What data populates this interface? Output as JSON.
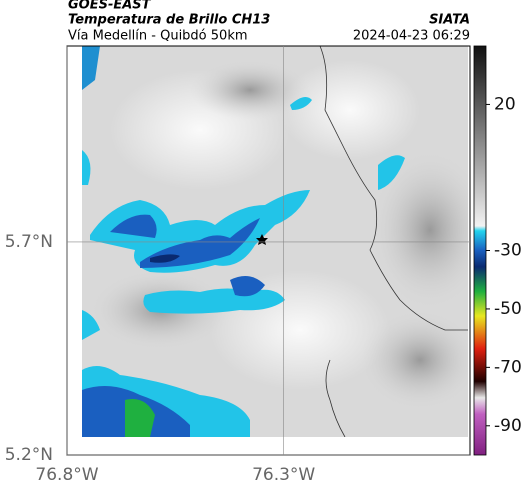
{
  "map": {
    "title": "GOES-EAST",
    "subtitle": "Temperatura de Brillo CH13",
    "region": "Vía Medellín - Quibdó 50km",
    "source": "SIATA",
    "timestamp": "2024-04-23 06:29",
    "xlim": [
      -76.8,
      -75.87
    ],
    "ylim": [
      5.2,
      6.16
    ],
    "xticks": [
      {
        "value": -76.8,
        "label": "76.8°W"
      },
      {
        "value": -76.3,
        "label": "76.3°W"
      }
    ],
    "yticks": [
      {
        "value": 5.7,
        "label": "5.7°N"
      },
      {
        "value": 5.2,
        "label": "5.2°N"
      }
    ],
    "colorbar": {
      "lim": [
        -100,
        40
      ],
      "ticks": [
        20,
        -30,
        -50,
        -70,
        -90
      ]
    }
  }
}
